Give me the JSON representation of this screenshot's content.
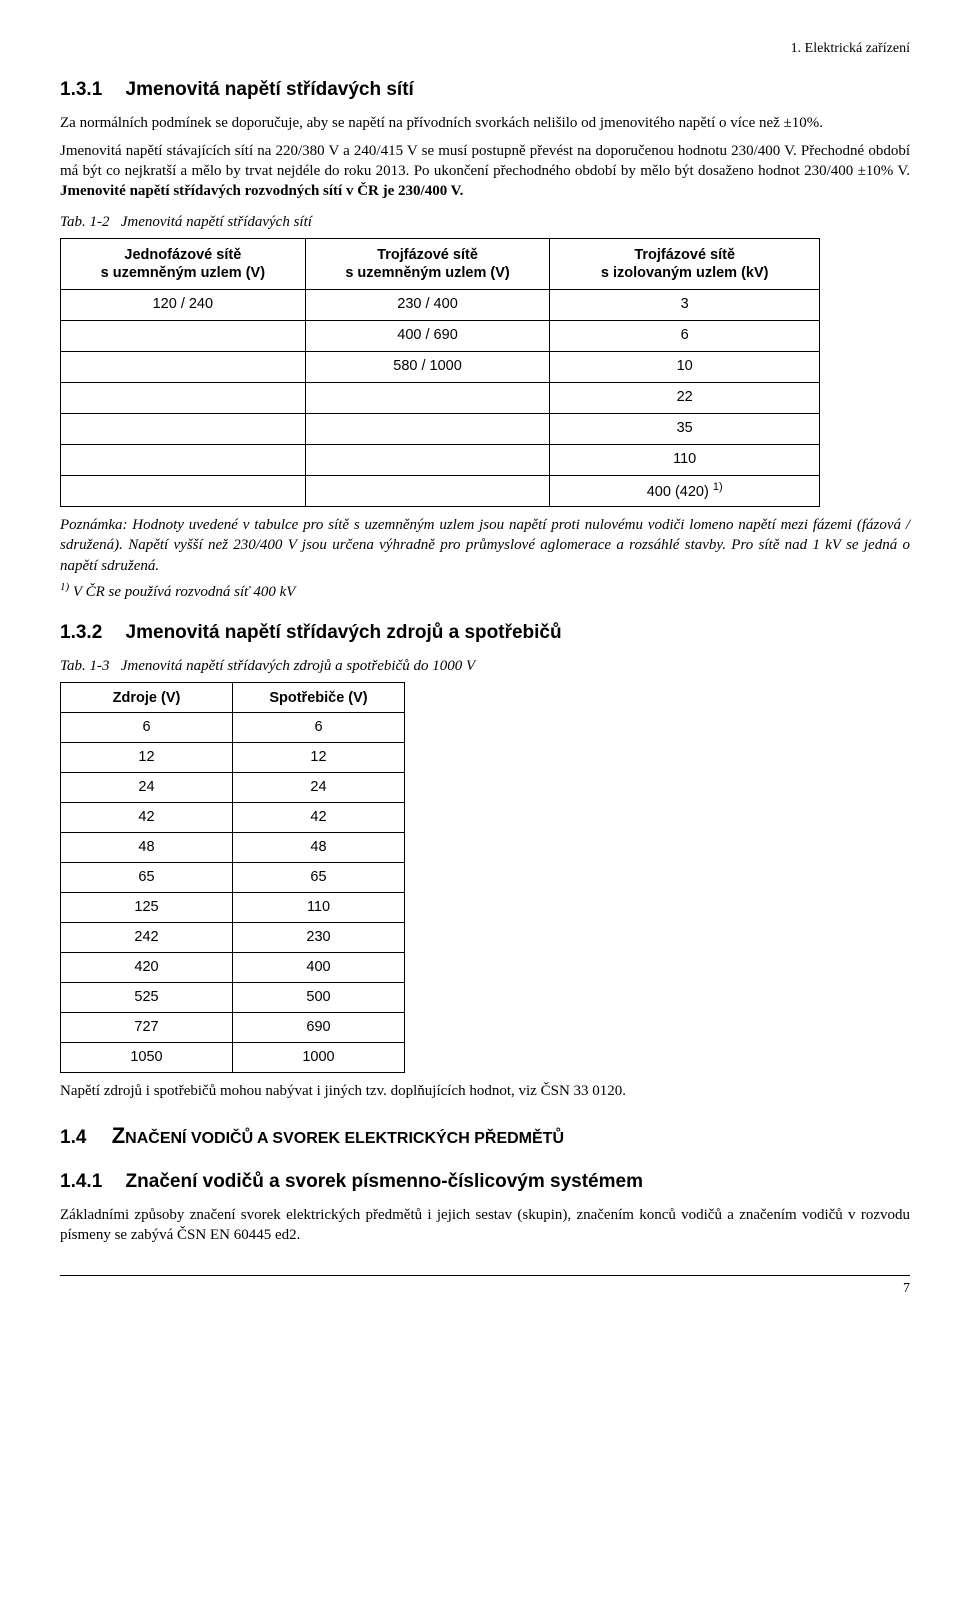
{
  "header": {
    "right": "1. Elektrická zařízení"
  },
  "s131": {
    "num": "1.3.1",
    "title": "Jmenovitá napětí střídavých sítí",
    "p1": "Za normálních podmínek se doporučuje, aby se napětí na přívodních svorkách nelišilo od jmenovitého napětí o více než ±10%.",
    "p2a": "Jmenovitá napětí stávajících sítí na 220/380 V a 240/415 V se musí postupně převést na doporučenou hodnotu 230/400 V. Přechodné období má být co nejkratší a mělo by trvat nejdéle do roku 2013. Po ukončení přechodného období by mělo být dosaženo hodnot 230/400 ±10% V. ",
    "p2b": "Jmenovité napětí střídavých rozvodných sítí v ČR je 230/400 V."
  },
  "tab12": {
    "caption_label": "Tab. 1-2",
    "caption_text": "Jmenovitá napětí střídavých sítí",
    "h1": "Jednofázové sítě\ns uzemněným uzlem (V)",
    "h2": "Trojfázové sítě\ns uzemněným uzlem (V)",
    "h3": "Trojfázové sítě\ns izolovaným uzlem (kV)",
    "rows": [
      [
        "120 / 240",
        "230 / 400",
        "3"
      ],
      [
        "",
        "400 / 690",
        "6"
      ],
      [
        "",
        "580 / 1000",
        "10"
      ],
      [
        "",
        "",
        "22"
      ],
      [
        "",
        "",
        "35"
      ],
      [
        "",
        "",
        "110"
      ]
    ],
    "last_c3_a": "400 (420) ",
    "last_c3_sup": "1)",
    "note": "Poznámka: Hodnoty uvedené v tabulce pro sítě s uzemněným uzlem jsou napětí proti nulovému vodiči lomeno napětí mezi fázemi (fázová / sdružená). Napětí vyšší než 230/400 V jsou určena výhradně pro průmyslové aglomerace a rozsáhlé stavby. Pro sítě nad 1 kV se jedná o napětí sdružená.",
    "foot_sup": "1)",
    "foot_text": " V ČR se používá rozvodná síť 400 kV"
  },
  "s132": {
    "num": "1.3.2",
    "title": "Jmenovitá napětí střídavých zdrojů a spotřebičů"
  },
  "tab13": {
    "caption_label": "Tab. 1-3",
    "caption_text": "Jmenovitá napětí střídavých zdrojů a spotřebičů do 1000 V",
    "h1": "Zdroje (V)",
    "h2": "Spotřebiče (V)",
    "rows": [
      [
        "6",
        "6"
      ],
      [
        "12",
        "12"
      ],
      [
        "24",
        "24"
      ],
      [
        "42",
        "42"
      ],
      [
        "48",
        "48"
      ],
      [
        "65",
        "65"
      ],
      [
        "125",
        "110"
      ],
      [
        "242",
        "230"
      ],
      [
        "420",
        "400"
      ],
      [
        "525",
        "500"
      ],
      [
        "727",
        "690"
      ],
      [
        "1050",
        "1000"
      ]
    ],
    "after": "Napětí zdrojů i spotřebičů mohou nabývat i jiných tzv. doplňujících hodnot, viz ČSN 33 0120."
  },
  "s14": {
    "num": "1.4",
    "title_pre": "Z",
    "title_rest": "načení vodičů a svorek elektrických předmětů"
  },
  "s141": {
    "num": "1.4.1",
    "title": "Značení vodičů a svorek písmenno-číslicovým systémem",
    "p": "Základními způsoby značení svorek elektrických předmětů i jejich sestav (skupin), značením konců vodičů a značením vodičů v rozvodu písmeny se zabývá ČSN EN 60445 ed2."
  },
  "page": "7"
}
